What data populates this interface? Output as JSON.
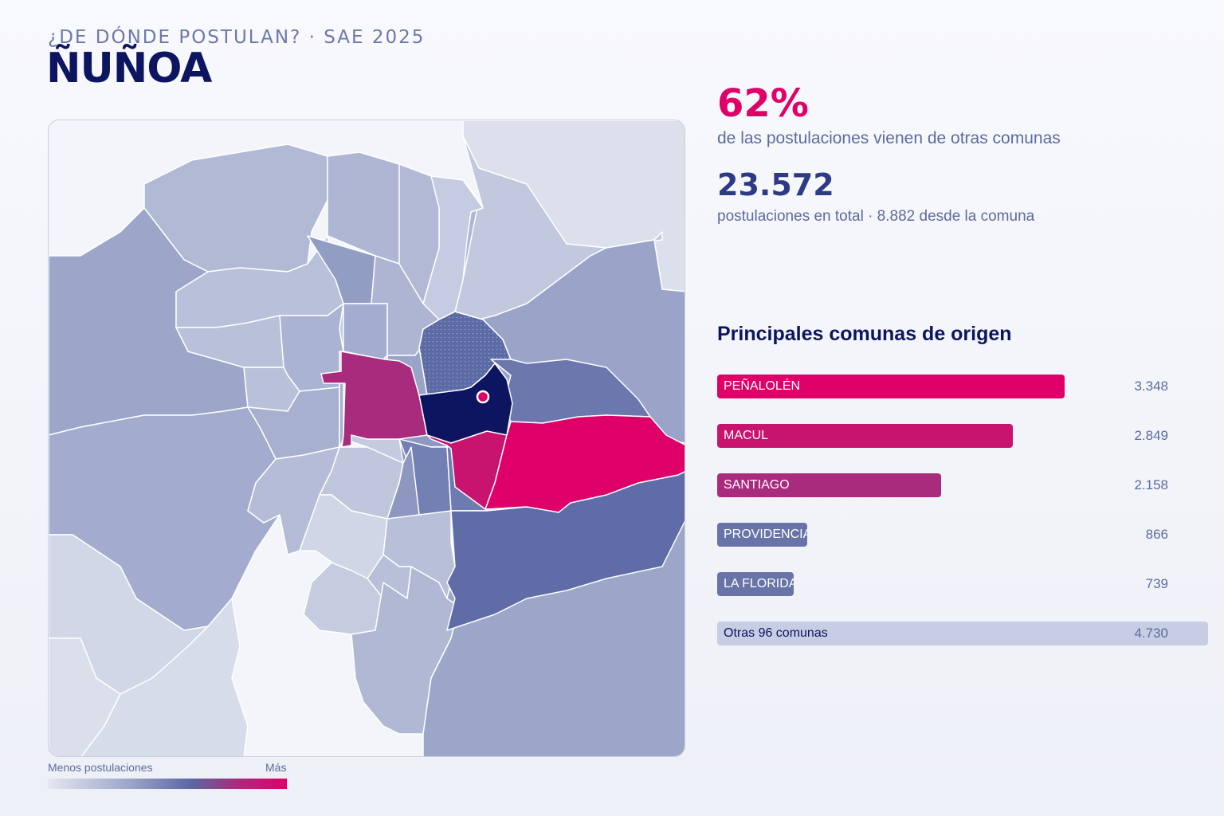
{
  "header": {
    "kicker": "¿DE DÓNDE POSTULAN? · SAE 2025",
    "title": "ÑUÑOA"
  },
  "stats": {
    "percent": "62%",
    "percent_caption": "de las postulaciones vienen de otras comunas",
    "total": "23.572",
    "total_caption": "postulaciones en total · 8.882 desde la comuna"
  },
  "legend": {
    "low_label": "Menos postulaciones",
    "high_label": "Más"
  },
  "colors": {
    "accent": "#de0068",
    "dark": "#0d1460",
    "muted": "#5d6b9f"
  },
  "chart_data": {
    "type": "bar",
    "title": "Principales comunas de origen",
    "categories": [
      "PEÑALOLÉN",
      "MACUL",
      "SANTIAGO",
      "PROVIDENCIA",
      "LA FLORIDA"
    ],
    "values": [
      3348,
      2849,
      2158,
      866,
      739
    ],
    "value_labels": [
      "3.348",
      "2.849",
      "2.158",
      "866",
      "739"
    ],
    "bar_colors": [
      "#de0068",
      "#c8146f",
      "#a92b7e",
      "#6873a8",
      "#6873a8"
    ],
    "other": {
      "label": "Otras 96 comunas",
      "value": 4730,
      "value_label": "4.730"
    },
    "xlim": [
      0,
      4730
    ]
  }
}
